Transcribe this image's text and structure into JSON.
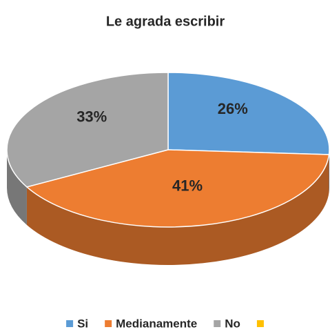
{
  "chart_data": {
    "type": "pie",
    "title": "Le agrada escribir",
    "categories": [
      "Si",
      "Medianamente",
      "No",
      null
    ],
    "values": [
      26,
      41,
      33,
      0
    ],
    "value_labels": [
      "26%",
      "41%",
      "33%",
      null
    ],
    "colors": [
      "#5b9bd5",
      "#ed7d31",
      "#a5a5a5",
      "#ffc000"
    ],
    "legend": "bottom"
  }
}
